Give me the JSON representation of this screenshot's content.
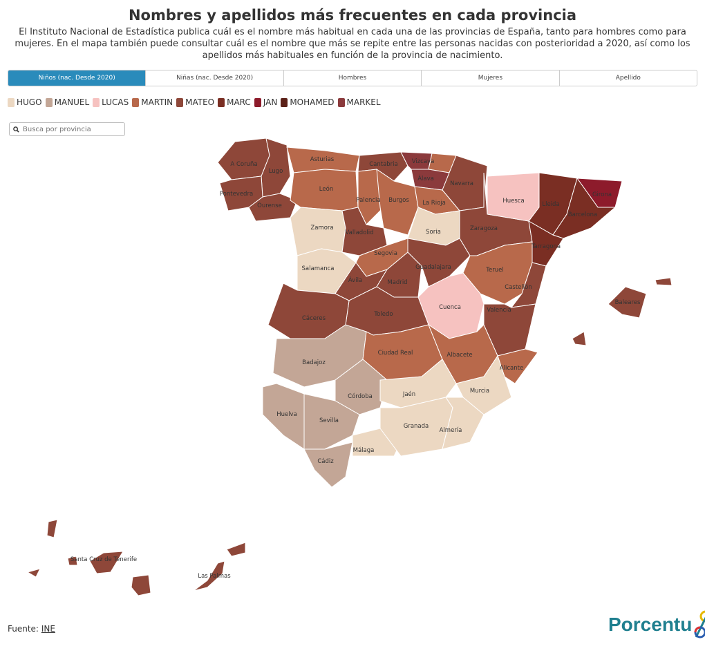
{
  "title": "Nombres y apellidos más frecuentes en cada provincia",
  "subtitle": "El Instituto Nacional de Estadística publica cuál es el nombre más habitual en cada una de las provincias de España, tanto para hombres como para mujeres. En el mapa también puede consultar cuál es el nombre que más se repite entre las personas nacidas con posterioridad a 2020, así como los apellidos más habituales en función de la provincia de nacimiento.",
  "tabs": [
    "Niños (nac. Desde 2020)",
    "Niñas (nac. Desde 2020)",
    "Hombres",
    "Mujeres",
    "Apellido"
  ],
  "active_tab": 0,
  "legend": [
    {
      "name": "HUGO",
      "color": "#ecd8c2"
    },
    {
      "name": "MANUEL",
      "color": "#c3a696"
    },
    {
      "name": "LUCAS",
      "color": "#f6c2c0"
    },
    {
      "name": "MARTIN",
      "color": "#b8694b"
    },
    {
      "name": "MATEO",
      "color": "#8e4739"
    },
    {
      "name": "MARC",
      "color": "#7a2e23"
    },
    {
      "name": "JAN",
      "color": "#8d1b2b"
    },
    {
      "name": "MOHAMED",
      "color": "#5b2118"
    },
    {
      "name": "MARKEL",
      "color": "#8b3a3c"
    }
  ],
  "search": {
    "placeholder": "Busca por provincia",
    "icon": "search-icon"
  },
  "provinces": [
    {
      "name": "A Coruña",
      "value": "MATEO"
    },
    {
      "name": "Lugo",
      "value": "MATEO"
    },
    {
      "name": "Pontevedra",
      "value": "MATEO"
    },
    {
      "name": "Ourense",
      "value": "MATEO"
    },
    {
      "name": "Asturias",
      "value": "MARTIN"
    },
    {
      "name": "León",
      "value": "MARTIN"
    },
    {
      "name": "Cantabria",
      "value": "MATEO"
    },
    {
      "name": "Vizcaya",
      "value": "MARKEL"
    },
    {
      "name": "",
      "value": "MARTIN"
    },
    {
      "name": "Álava",
      "value": "MARKEL"
    },
    {
      "name": "Navarra",
      "value": "MATEO"
    },
    {
      "name": "Palencia",
      "value": "MARTIN"
    },
    {
      "name": "Burgos",
      "value": "MARTIN"
    },
    {
      "name": "La Rioja",
      "value": "MARTIN"
    },
    {
      "name": "Zamora",
      "value": "HUGO"
    },
    {
      "name": "Valladolid",
      "value": "MATEO"
    },
    {
      "name": "Soria",
      "value": "HUGO"
    },
    {
      "name": "Salamanca",
      "value": "HUGO"
    },
    {
      "name": "Segovia",
      "value": "MARTIN"
    },
    {
      "name": "Ávila",
      "value": "MATEO"
    },
    {
      "name": "Madrid",
      "value": "MATEO"
    },
    {
      "name": "Guadalajara",
      "value": "MATEO"
    },
    {
      "name": "Zaragoza",
      "value": "MATEO"
    },
    {
      "name": "Huesca",
      "value": "LUCAS"
    },
    {
      "name": "Lleida",
      "value": "MARC"
    },
    {
      "name": "Girona",
      "value": "JAN"
    },
    {
      "name": "Barcelona",
      "value": "MARC"
    },
    {
      "name": "Tarragona",
      "value": "MARC"
    },
    {
      "name": "Teruel",
      "value": "MARTIN"
    },
    {
      "name": "Castellón",
      "value": "MATEO"
    },
    {
      "name": "Valencia",
      "value": "MATEO"
    },
    {
      "name": "Cuenca",
      "value": "LUCAS"
    },
    {
      "name": "Toledo",
      "value": "MATEO"
    },
    {
      "name": "Cáceres",
      "value": "MATEO"
    },
    {
      "name": "Badajoz",
      "value": "MANUEL"
    },
    {
      "name": "Ciudad Real",
      "value": "MARTIN"
    },
    {
      "name": "Albacete",
      "value": "MARTIN"
    },
    {
      "name": "Alicante",
      "value": "MARTIN"
    },
    {
      "name": "Murcia",
      "value": "HUGO"
    },
    {
      "name": "Córdoba",
      "value": "MANUEL"
    },
    {
      "name": "Jaén",
      "value": "HUGO"
    },
    {
      "name": "Huelva",
      "value": "MANUEL"
    },
    {
      "name": "Sevilla",
      "value": "MANUEL"
    },
    {
      "name": "Cádiz",
      "value": "MANUEL"
    },
    {
      "name": "Málaga",
      "value": "HUGO"
    },
    {
      "name": "Granada",
      "value": "HUGO"
    },
    {
      "name": "Almería",
      "value": "HUGO"
    },
    {
      "name": "Baleares",
      "value": "MATEO"
    },
    {
      "name": "Santa Cruz de Tenerife",
      "value": "MATEO"
    },
    {
      "name": "Las Palmas",
      "value": "MATEO"
    }
  ],
  "source": {
    "label": "Fuente:",
    "link": "INE"
  },
  "logo": "Porcentual"
}
